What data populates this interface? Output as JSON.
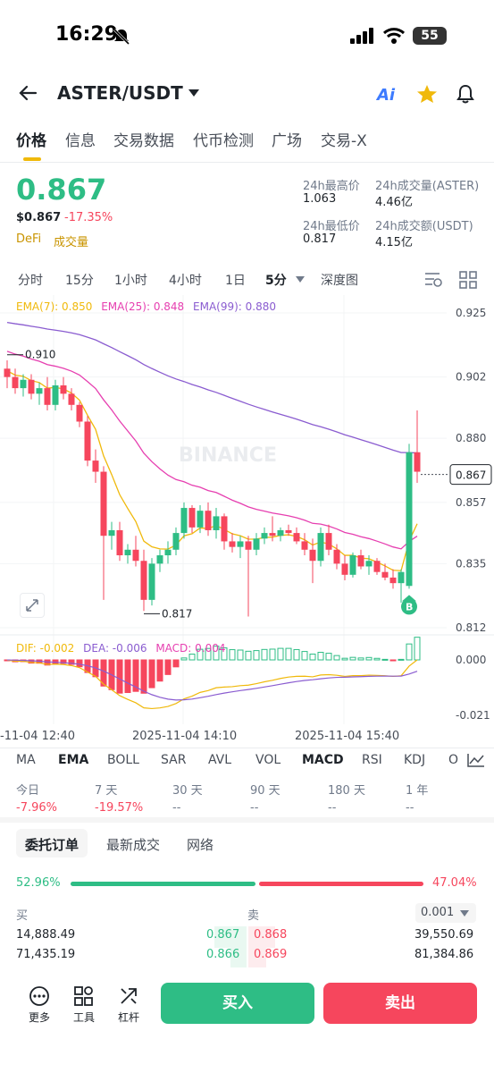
{
  "status_bar": {
    "time": "16:29",
    "battery": "55"
  },
  "header": {
    "pair": "ASTER/USDT",
    "ai_label": "Ai"
  },
  "tabs": [
    "价格",
    "信息",
    "交易数据",
    "代币检测",
    "广场",
    "交易-X"
  ],
  "ticker": {
    "last_price": "0.867",
    "usd_price": "$0.867",
    "change": "-17.35%",
    "tag1": "DeFi",
    "tag2": "成交量",
    "high_label": "24h最高价",
    "high": "1.063",
    "low_label": "24h最低价",
    "low": "0.817",
    "vol_base_label": "24h成交量(ASTER)",
    "vol_base": "4.46亿",
    "vol_quote_label": "24h成交额(USDT)",
    "vol_quote": "4.15亿"
  },
  "intervals": [
    "分时",
    "15分",
    "1小时",
    "4小时",
    "1日",
    "5分",
    "深度图"
  ],
  "active_interval": "5分",
  "chart_data": {
    "type": "candlestick",
    "ema_labels": {
      "ema7": "EMA(7): 0.850",
      "ema25": "EMA(25): 0.848",
      "ema99": "EMA(99): 0.880"
    },
    "price_axis": [
      "0.925",
      "0.902",
      "0.880",
      "0.857",
      "0.835",
      "0.812"
    ],
    "current_price_tag": "0.867",
    "high_marker": "0.910",
    "low_marker": "0.817",
    "watermark": "BINANCE",
    "buy_marker": "B",
    "ylim": [
      0.812,
      0.925
    ],
    "candles": [
      [
        0.905,
        0.908,
        0.898,
        0.902
      ],
      [
        0.902,
        0.905,
        0.896,
        0.898
      ],
      [
        0.898,
        0.903,
        0.895,
        0.901
      ],
      [
        0.901,
        0.903,
        0.894,
        0.896
      ],
      [
        0.896,
        0.9,
        0.892,
        0.898
      ],
      [
        0.898,
        0.902,
        0.89,
        0.892
      ],
      [
        0.892,
        0.901,
        0.89,
        0.899
      ],
      [
        0.899,
        0.902,
        0.894,
        0.896
      ],
      [
        0.896,
        0.898,
        0.89,
        0.892
      ],
      [
        0.892,
        0.893,
        0.884,
        0.886
      ],
      [
        0.886,
        0.888,
        0.87,
        0.872
      ],
      [
        0.872,
        0.876,
        0.864,
        0.868
      ],
      [
        0.868,
        0.87,
        0.822,
        0.845
      ],
      [
        0.845,
        0.85,
        0.84,
        0.847
      ],
      [
        0.847,
        0.85,
        0.836,
        0.838
      ],
      [
        0.838,
        0.842,
        0.835,
        0.84
      ],
      [
        0.84,
        0.845,
        0.834,
        0.836
      ],
      [
        0.836,
        0.84,
        0.818,
        0.822
      ],
      [
        0.822,
        0.837,
        0.82,
        0.835
      ],
      [
        0.835,
        0.84,
        0.832,
        0.838
      ],
      [
        0.838,
        0.843,
        0.835,
        0.84
      ],
      [
        0.84,
        0.848,
        0.838,
        0.846
      ],
      [
        0.846,
        0.857,
        0.844,
        0.855
      ],
      [
        0.855,
        0.856,
        0.846,
        0.848
      ],
      [
        0.848,
        0.856,
        0.846,
        0.854
      ],
      [
        0.854,
        0.857,
        0.845,
        0.847
      ],
      [
        0.847,
        0.855,
        0.844,
        0.852
      ],
      [
        0.852,
        0.853,
        0.84,
        0.843
      ],
      [
        0.843,
        0.846,
        0.839,
        0.841
      ],
      [
        0.841,
        0.845,
        0.837,
        0.843
      ],
      [
        0.843,
        0.845,
        0.816,
        0.84
      ],
      [
        0.84,
        0.846,
        0.838,
        0.844
      ],
      [
        0.844,
        0.848,
        0.842,
        0.846
      ],
      [
        0.846,
        0.852,
        0.843,
        0.845
      ],
      [
        0.845,
        0.848,
        0.843,
        0.847
      ],
      [
        0.847,
        0.849,
        0.845,
        0.846
      ],
      [
        0.846,
        0.848,
        0.842,
        0.843
      ],
      [
        0.843,
        0.846,
        0.838,
        0.84
      ],
      [
        0.84,
        0.844,
        0.828,
        0.836
      ],
      [
        0.836,
        0.848,
        0.834,
        0.846
      ],
      [
        0.846,
        0.849,
        0.838,
        0.84
      ],
      [
        0.84,
        0.842,
        0.833,
        0.835
      ],
      [
        0.835,
        0.838,
        0.829,
        0.831
      ],
      [
        0.831,
        0.839,
        0.83,
        0.838
      ],
      [
        0.838,
        0.84,
        0.833,
        0.834
      ],
      [
        0.834,
        0.838,
        0.831,
        0.836
      ],
      [
        0.836,
        0.837,
        0.831,
        0.832
      ],
      [
        0.832,
        0.835,
        0.829,
        0.83
      ],
      [
        0.83,
        0.833,
        0.826,
        0.828
      ],
      [
        0.828,
        0.833,
        0.821,
        0.832
      ],
      [
        0.827,
        0.878,
        0.826,
        0.875
      ],
      [
        0.875,
        0.89,
        0.864,
        0.868
      ]
    ]
  },
  "macd": {
    "dif": "DIF: -0.002",
    "dea": "DEA: -0.006",
    "macd": "MACD: 0.004",
    "axis_top": "0.000",
    "axis_bottom": "-0.021"
  },
  "time_axis": [
    "-11-04 12:40",
    "2025-11-04 14:10",
    "2025-11-04 15:40"
  ],
  "indicators": [
    "MA",
    "EMA",
    "BOLL",
    "SAR",
    "AVL",
    "VOL",
    "MACD",
    "RSI",
    "KDJ",
    "O"
  ],
  "changes": [
    {
      "label": "今日",
      "value": "-7.96%"
    },
    {
      "label": "7 天",
      "value": "-19.57%"
    },
    {
      "label": "30 天",
      "value": "--"
    },
    {
      "label": "90 天",
      "value": "--"
    },
    {
      "label": "180 天",
      "value": "--"
    },
    {
      "label": "1 年",
      "value": "--"
    }
  ],
  "orderbook": {
    "tabs": [
      "委托订单",
      "最新成交",
      "网络"
    ],
    "buy_pct": "52.96%",
    "sell_pct": "47.04%",
    "buy_label": "买",
    "sell_label": "卖",
    "precision": "0.001",
    "rows": [
      {
        "bid_qty": "14,888.49",
        "bid": "0.867",
        "ask": "0.868",
        "ask_qty": "39,550.69"
      },
      {
        "bid_qty": "71,435.19",
        "bid": "0.866",
        "ask": "0.869",
        "ask_qty": "81,384.86"
      }
    ]
  },
  "bottom": {
    "more": "更多",
    "tools": "工具",
    "leverage": "杠杆",
    "buy": "买入",
    "sell": "卖出"
  }
}
